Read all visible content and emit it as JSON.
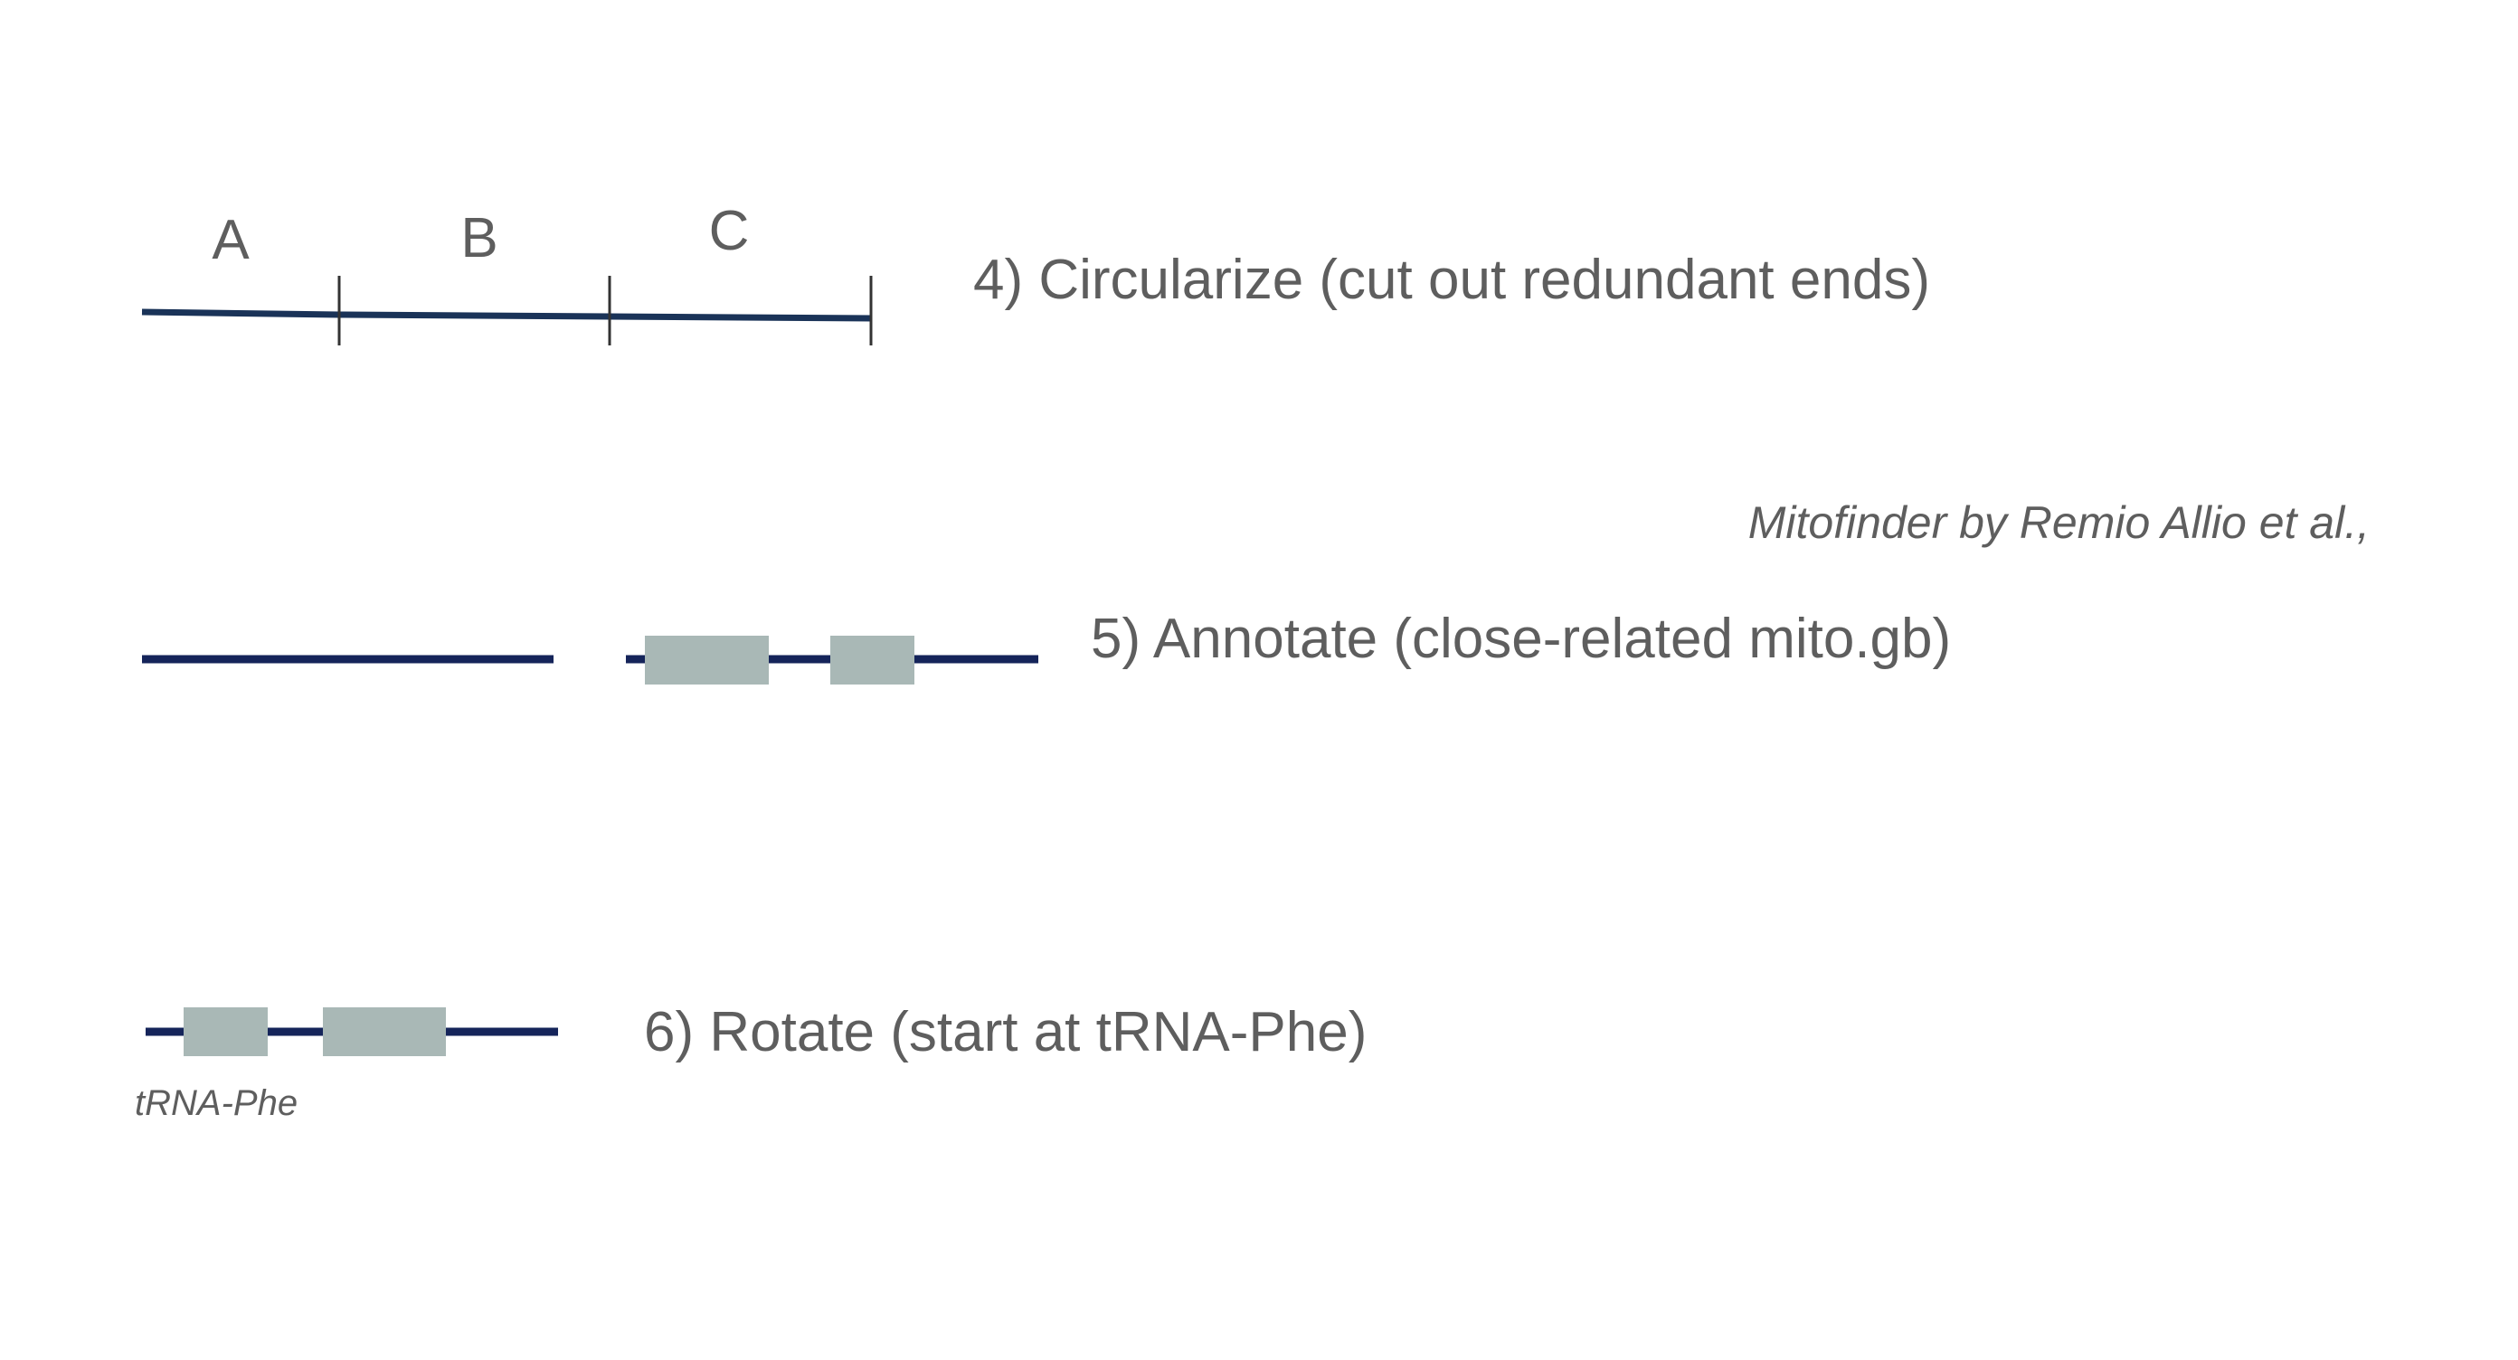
{
  "colors": {
    "line": "#1a2a5a",
    "block": "#a9b8b6",
    "text": "#5e5e5e"
  },
  "step4": {
    "segments": [
      "A",
      "B",
      "C"
    ],
    "label": "4) Circularize (cut out redundant ends)"
  },
  "credit": "Mitofinder by Remio Allio et al.,",
  "step5": {
    "label": "5) Annotate (close-related mito.gb)"
  },
  "step6": {
    "label": "6) Rotate (start at tRNA-Phe)",
    "gene_label": "tRNA-Phe"
  }
}
